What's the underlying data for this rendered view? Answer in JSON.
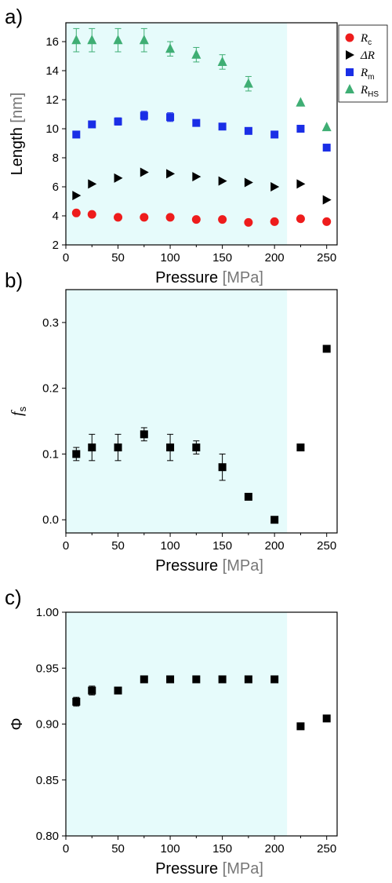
{
  "colors": {
    "shade": "#e6fbfb",
    "rc": "#ee1c1c",
    "dr": "#000000",
    "rm": "#1a2ee6",
    "rhs": "#3fae74",
    "fs": "#000000",
    "phi": "#000000"
  },
  "chart_data": [
    {
      "type": "scatter",
      "panel_label": "a)",
      "xlabel": "Pressure",
      "xunit": "[MPa]",
      "ylabel": "Length",
      "yunit": "[nm]",
      "xlim": [
        0,
        260
      ],
      "ylim": [
        2,
        17.3
      ],
      "xticks": [
        0,
        50,
        100,
        150,
        200,
        250
      ],
      "yticks": [
        2,
        4,
        6,
        8,
        10,
        12,
        14,
        16
      ],
      "shaded_region": [
        0,
        212
      ],
      "legend_position": "top-right",
      "series": [
        {
          "name": "R",
          "sub": "c",
          "marker": "circle",
          "color_key": "rc",
          "x": [
            10,
            25,
            50,
            75,
            100,
            125,
            150,
            175,
            200,
            225,
            250
          ],
          "y": [
            4.2,
            4.1,
            3.9,
            3.9,
            3.9,
            3.75,
            3.75,
            3.55,
            3.6,
            3.8,
            3.6
          ],
          "err": [
            0,
            0,
            0,
            0,
            0,
            0,
            0,
            0,
            0,
            0,
            0
          ]
        },
        {
          "name": "ΔR",
          "sub": "",
          "marker": "triangle-right",
          "color_key": "dr",
          "x": [
            10,
            25,
            50,
            75,
            100,
            125,
            150,
            175,
            200,
            225,
            250
          ],
          "y": [
            5.4,
            6.2,
            6.6,
            7.0,
            6.9,
            6.7,
            6.4,
            6.3,
            6.0,
            6.2,
            5.1
          ],
          "err": [
            0,
            0,
            0,
            0,
            0,
            0,
            0,
            0,
            0,
            0,
            0
          ]
        },
        {
          "name": "R",
          "sub": "m",
          "marker": "square",
          "color_key": "rm",
          "x": [
            10,
            25,
            50,
            75,
            100,
            125,
            150,
            175,
            200,
            225,
            250
          ],
          "y": [
            9.6,
            10.3,
            10.5,
            10.9,
            10.8,
            10.4,
            10.15,
            9.85,
            9.6,
            10.0,
            8.7
          ],
          "err": [
            0.2,
            0.2,
            0.25,
            0.3,
            0.3,
            0.15,
            0.15,
            0.15,
            0.15,
            0,
            0
          ]
        },
        {
          "name": "R",
          "sub": "HS",
          "marker": "triangle-up",
          "color_key": "rhs",
          "x": [
            10,
            25,
            50,
            75,
            100,
            125,
            150,
            175,
            200,
            225,
            250
          ],
          "y": [
            16.1,
            16.1,
            16.1,
            16.1,
            15.5,
            15.1,
            14.6,
            13.1,
            null,
            11.8,
            10.1
          ],
          "err": [
            0.8,
            0.8,
            0.8,
            0.8,
            0.5,
            0.5,
            0.5,
            0.5,
            0,
            0,
            0
          ]
        }
      ]
    },
    {
      "type": "scatter",
      "panel_label": "b)",
      "xlabel": "Pressure",
      "xunit": "[MPa]",
      "ylabel": "f",
      "ylabel_sub": "s",
      "xlim": [
        0,
        260
      ],
      "ylim": [
        -0.02,
        0.35
      ],
      "xticks": [
        0,
        50,
        100,
        150,
        200,
        250
      ],
      "yticks": [
        0.0,
        0.1,
        0.2,
        0.3
      ],
      "shaded_region": [
        0,
        212
      ],
      "series": [
        {
          "name": "",
          "marker": "square",
          "color_key": "fs",
          "x": [
            10,
            25,
            50,
            75,
            100,
            125,
            150,
            175,
            200,
            225,
            250
          ],
          "y": [
            0.1,
            0.11,
            0.11,
            0.13,
            0.11,
            0.11,
            0.08,
            0.035,
            0.0,
            0.11,
            0.26
          ],
          "err": [
            0.01,
            0.02,
            0.02,
            0.01,
            0.02,
            0.01,
            0.02,
            0,
            0,
            0,
            0
          ]
        }
      ]
    },
    {
      "type": "scatter",
      "panel_label": "c)",
      "xlabel": "Pressure",
      "xunit": "[MPa]",
      "ylabel": "Φ",
      "xlim": [
        0,
        260
      ],
      "ylim": [
        0.8,
        1.0
      ],
      "xticks": [
        0,
        50,
        100,
        150,
        200,
        250
      ],
      "yticks": [
        0.8,
        0.85,
        0.9,
        0.95,
        1.0
      ],
      "ytick_decimals": 2,
      "shaded_region": [
        0,
        212
      ],
      "series": [
        {
          "name": "",
          "marker": "square",
          "color_key": "phi",
          "x": [
            10,
            25,
            50,
            75,
            100,
            125,
            150,
            175,
            200,
            225,
            250
          ],
          "y": [
            0.92,
            0.93,
            0.93,
            0.94,
            0.94,
            0.94,
            0.94,
            0.94,
            0.94,
            0.898,
            0.905
          ],
          "err": [
            0.004,
            0.004,
            0,
            0,
            0,
            0,
            0,
            0,
            0,
            0,
            0.002
          ]
        }
      ]
    }
  ]
}
